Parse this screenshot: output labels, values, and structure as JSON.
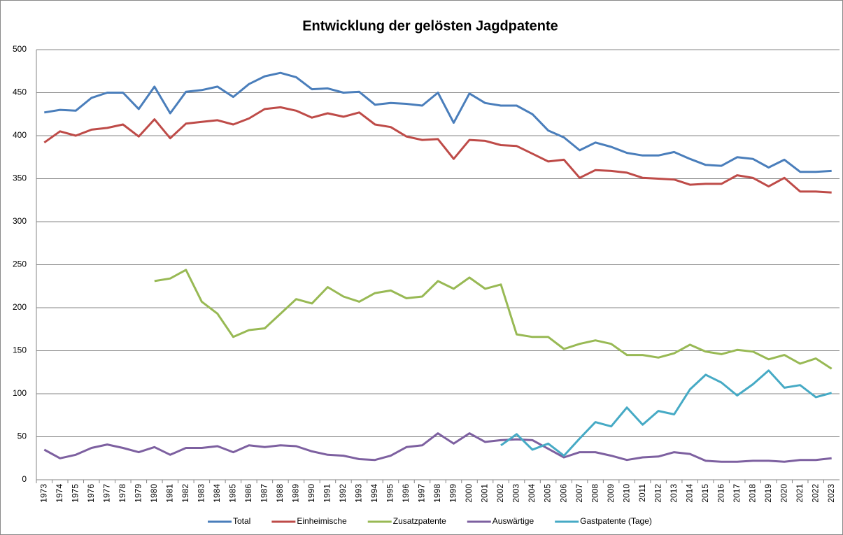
{
  "chart_data": {
    "type": "line",
    "title": "Entwicklung der gelösten Jagdpatente",
    "categories": [
      "1973",
      "1974",
      "1975",
      "1976",
      "1977",
      "1978",
      "1979",
      "1980",
      "1981",
      "1982",
      "1983",
      "1984",
      "1985",
      "1986",
      "1987",
      "1988",
      "1989",
      "1990",
      "1991",
      "1992",
      "1993",
      "1994",
      "1995",
      "1996",
      "1997",
      "1998",
      "1999",
      "2000",
      "2001",
      "2002",
      "2003",
      "2004",
      "2005",
      "2006",
      "2007",
      "2008",
      "2009",
      "2010",
      "2011",
      "2012",
      "2013",
      "2014",
      "2015",
      "2016",
      "2017",
      "2018",
      "2019",
      "2020",
      "2021",
      "2022",
      "2023"
    ],
    "series": [
      {
        "name": "Total",
        "color": "#4a7ebb",
        "values": [
          427,
          430,
          429,
          444,
          450,
          450,
          431,
          457,
          426,
          451,
          453,
          457,
          445,
          460,
          469,
          473,
          468,
          454,
          455,
          450,
          451,
          436,
          438,
          437,
          435,
          450,
          415,
          449,
          438,
          435,
          435,
          425,
          406,
          398,
          383,
          392,
          387,
          380,
          377,
          377,
          381,
          373,
          366,
          365,
          375,
          373,
          363,
          372,
          358,
          358,
          359
        ]
      },
      {
        "name": "Einheimische",
        "color": "#be4b48",
        "values": [
          392,
          405,
          400,
          407,
          409,
          413,
          399,
          419,
          397,
          414,
          416,
          418,
          413,
          420,
          431,
          433,
          429,
          421,
          426,
          422,
          427,
          413,
          410,
          399,
          395,
          396,
          373,
          395,
          394,
          389,
          388,
          379,
          370,
          372,
          351,
          360,
          359,
          357,
          351,
          350,
          349,
          343,
          344,
          344,
          354,
          351,
          341,
          351,
          335,
          335,
          334
        ]
      },
      {
        "name": "Zusatzpatente",
        "color": "#98b954",
        "values": [
          null,
          null,
          null,
          null,
          null,
          null,
          null,
          231,
          234,
          244,
          207,
          193,
          166,
          174,
          176,
          193,
          210,
          205,
          224,
          213,
          207,
          217,
          220,
          211,
          213,
          231,
          222,
          235,
          222,
          227,
          169,
          166,
          166,
          152,
          158,
          162,
          158,
          145,
          145,
          142,
          147,
          157,
          149,
          146,
          151,
          149,
          140,
          145,
          135,
          141,
          129
        ]
      },
      {
        "name": "Auswärtige",
        "color": "#7d60a0",
        "values": [
          35,
          25,
          29,
          37,
          41,
          37,
          32,
          38,
          29,
          37,
          37,
          39,
          32,
          40,
          38,
          40,
          39,
          33,
          29,
          28,
          24,
          23,
          28,
          38,
          40,
          54,
          42,
          54,
          44,
          46,
          47,
          46,
          36,
          26,
          32,
          32,
          28,
          23,
          26,
          27,
          32,
          30,
          22,
          21,
          21,
          22,
          22,
          21,
          23,
          23,
          25
        ]
      },
      {
        "name": "Gastpatente (Tage)",
        "color": "#46aac5",
        "values": [
          null,
          null,
          null,
          null,
          null,
          null,
          null,
          null,
          null,
          null,
          null,
          null,
          null,
          null,
          null,
          null,
          null,
          null,
          null,
          null,
          null,
          null,
          null,
          null,
          null,
          null,
          null,
          null,
          null,
          40,
          53,
          35,
          42,
          28,
          48,
          67,
          62,
          84,
          64,
          80,
          76,
          105,
          122,
          113,
          98,
          111,
          127,
          107,
          110,
          96,
          101
        ]
      }
    ],
    "ylim": [
      0,
      500
    ],
    "yticks": [
      0,
      50,
      100,
      150,
      200,
      250,
      300,
      350,
      400,
      450,
      500
    ],
    "grid": true,
    "legend": "bottom"
  }
}
